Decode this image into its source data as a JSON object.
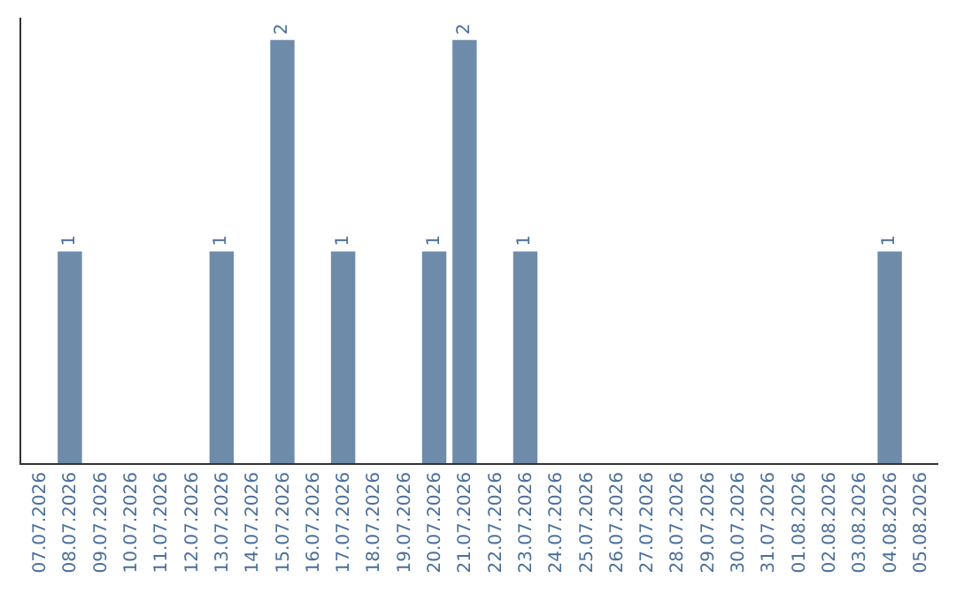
{
  "chart_data": {
    "type": "bar",
    "categories": [
      "07.07.2026",
      "08.07.2026",
      "09.07.2026",
      "10.07.2026",
      "11.07.2026",
      "12.07.2026",
      "13.07.2026",
      "14.07.2026",
      "15.07.2026",
      "16.07.2026",
      "17.07.2026",
      "18.07.2026",
      "19.07.2026",
      "20.07.2026",
      "21.07.2026",
      "22.07.2026",
      "23.07.2026",
      "24.07.2026",
      "25.07.2026",
      "26.07.2026",
      "27.07.2026",
      "28.07.2026",
      "29.07.2026",
      "30.07.2026",
      "31.07.2026",
      "01.08.2026",
      "02.08.2026",
      "03.08.2026",
      "04.08.2026",
      "05.08.2026"
    ],
    "values": [
      0,
      1,
      0,
      0,
      0,
      0,
      1,
      0,
      2,
      0,
      1,
      0,
      0,
      1,
      2,
      0,
      1,
      0,
      0,
      0,
      0,
      0,
      0,
      0,
      0,
      0,
      0,
      0,
      1,
      0
    ],
    "value_labels": [
      null,
      "1",
      null,
      null,
      null,
      null,
      "1",
      null,
      "2",
      null,
      "1",
      null,
      null,
      "1",
      "2",
      null,
      "1",
      null,
      null,
      null,
      null,
      null,
      null,
      null,
      null,
      null,
      null,
      null,
      "1",
      null
    ],
    "color": "#6e8caa",
    "tick_labels": "x"
  }
}
